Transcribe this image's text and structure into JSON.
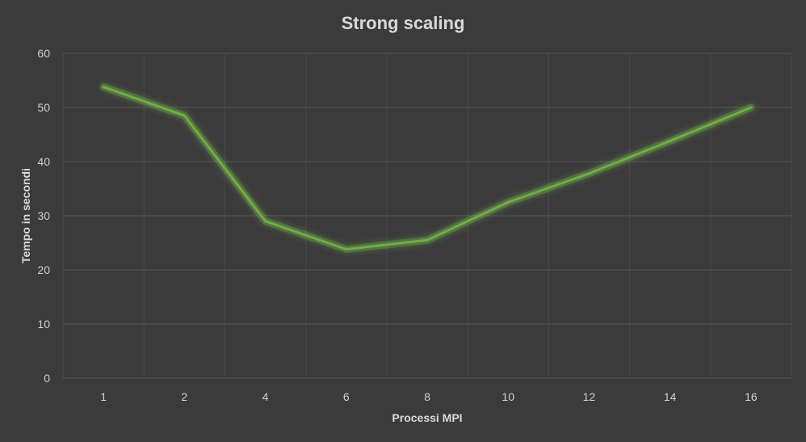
{
  "chart_data": {
    "type": "line",
    "title": "Strong scaling",
    "xlabel": "Processi MPI",
    "ylabel": "Tempo in secondi",
    "categories": [
      "1",
      "2",
      "4",
      "6",
      "8",
      "10",
      "12",
      "14",
      "16"
    ],
    "series": [
      {
        "values": [
          53.8,
          48.5,
          29.0,
          23.8,
          25.5,
          32.5,
          37.8,
          43.8,
          50.0
        ],
        "color": "#70ad47"
      }
    ],
    "ylim": [
      0,
      60
    ],
    "yticks": [
      "0",
      "10",
      "20",
      "30",
      "40",
      "50",
      "60"
    ],
    "grid": true,
    "legend": "none",
    "background": "#3b3b3b",
    "grid_color": "#555555",
    "text_color": "#d9d9d9"
  }
}
